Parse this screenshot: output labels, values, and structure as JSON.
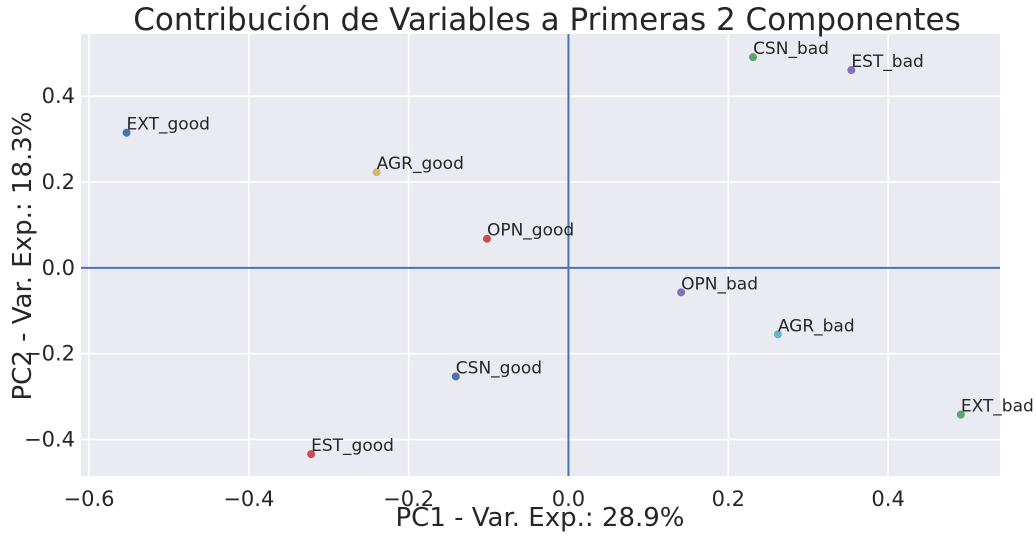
{
  "chart_data": {
    "type": "scatter",
    "title": "Contribución de Variables a Primeras 2 Componentes",
    "xlabel": "PC1 - Var. Exp.: 28.9%",
    "ylabel": "PC2 - Var. Exp.: 18.3%",
    "xlim": [
      -0.61,
      0.54
    ],
    "ylim": [
      -0.485,
      0.545
    ],
    "xticks": [
      -0.6,
      -0.4,
      -0.2,
      0.0,
      0.2,
      0.4
    ],
    "xtick_labels": [
      "−0.6",
      "−0.4",
      "−0.2",
      "0.0",
      "0.2",
      "0.4"
    ],
    "yticks": [
      -0.4,
      -0.2,
      0.0,
      0.2,
      0.4
    ],
    "ytick_labels": [
      "−0.4",
      "−0.2",
      "0.0",
      "0.2",
      "0.4"
    ],
    "grid": true,
    "reference_lines": {
      "x": 0.0,
      "y": 0.0,
      "color": "#4c72b0"
    },
    "points": [
      {
        "label": "EXT_good",
        "x": -0.553,
        "y": 0.315,
        "color": "#4c72b0"
      },
      {
        "label": "AGR_good",
        "x": -0.24,
        "y": 0.223,
        "color": "#ccb974"
      },
      {
        "label": "OPN_good",
        "x": -0.102,
        "y": 0.068,
        "color": "#c44e52"
      },
      {
        "label": "CSN_good",
        "x": -0.141,
        "y": -0.253,
        "color": "#4c72b0"
      },
      {
        "label": "EST_good",
        "x": -0.322,
        "y": -0.434,
        "color": "#c44e52"
      },
      {
        "label": "CSN_bad",
        "x": 0.231,
        "y": 0.491,
        "color": "#55a868"
      },
      {
        "label": "EST_bad",
        "x": 0.354,
        "y": 0.461,
        "color": "#8172b2"
      },
      {
        "label": "OPN_bad",
        "x": 0.141,
        "y": -0.057,
        "color": "#8172b2"
      },
      {
        "label": "AGR_bad",
        "x": 0.262,
        "y": -0.155,
        "color": "#64b5cd"
      },
      {
        "label": "EXT_bad",
        "x": 0.491,
        "y": -0.342,
        "color": "#55a868"
      }
    ]
  },
  "style": {
    "plot_background": "#eaeaf2",
    "grid_color": "#ffffff"
  }
}
